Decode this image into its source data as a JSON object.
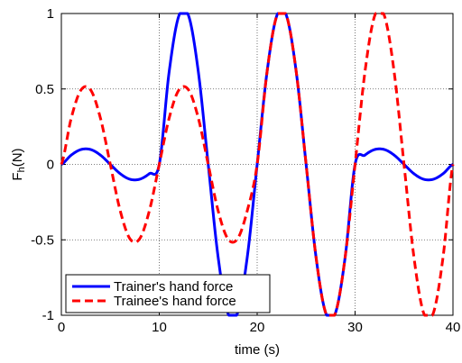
{
  "chart_data": {
    "type": "line",
    "title": "",
    "xlabel": "time (s)",
    "ylabel_main": "F",
    "ylabel_sub": "h",
    "ylabel_tail": "(N)",
    "xlim": [
      0,
      40
    ],
    "ylim": [
      -1,
      1
    ],
    "grid": true,
    "legend_position": "bottom-left",
    "x_ticks": [
      0,
      10,
      20,
      30,
      40
    ],
    "x_tick_labels": [
      "0",
      "10",
      "20",
      "30",
      "40"
    ],
    "y_ticks": [
      -1,
      -0.5,
      0,
      0.5,
      1
    ],
    "y_tick_labels": [
      "-1",
      "-0.5",
      "0",
      "0.5",
      "1"
    ],
    "x": [
      0,
      1,
      2,
      3,
      4,
      5,
      6,
      7,
      8,
      9,
      10,
      11,
      12,
      13,
      14,
      15,
      16,
      17,
      18,
      19,
      20,
      21,
      22,
      23,
      24,
      25,
      26,
      27,
      28,
      29,
      30,
      31,
      32,
      33,
      34,
      35,
      36,
      37,
      38,
      39,
      40
    ],
    "series": [
      {
        "name": "Trainer's hand force",
        "color": "#0000ff",
        "style": "solid",
        "values": [
          0,
          0.059,
          0.095,
          0.095,
          0.059,
          0,
          -0.059,
          -0.095,
          -0.095,
          -0.059,
          0,
          0.588,
          0.951,
          0.951,
          0.588,
          0,
          -0.588,
          -0.951,
          -0.951,
          -0.588,
          0,
          0.588,
          0.951,
          0.951,
          0.588,
          0,
          -0.588,
          -0.951,
          -0.951,
          -0.588,
          0,
          0.059,
          0.095,
          0.095,
          0.059,
          0,
          -0.059,
          -0.095,
          -0.095,
          -0.059,
          0
        ]
      },
      {
        "name": "Trainee's hand force",
        "color": "#ff0000",
        "style": "dashed",
        "values": [
          0,
          0.294,
          0.476,
          0.476,
          0.294,
          0,
          -0.294,
          -0.476,
          -0.476,
          -0.294,
          0,
          0.294,
          0.476,
          0.476,
          0.294,
          0,
          -0.294,
          -0.476,
          -0.476,
          -0.294,
          0,
          0.588,
          0.951,
          0.951,
          0.588,
          0,
          -0.588,
          -0.951,
          -0.951,
          -0.588,
          0,
          0.588,
          0.951,
          0.951,
          0.588,
          0,
          -0.588,
          -0.951,
          -0.951,
          -0.588,
          0
        ]
      }
    ]
  }
}
